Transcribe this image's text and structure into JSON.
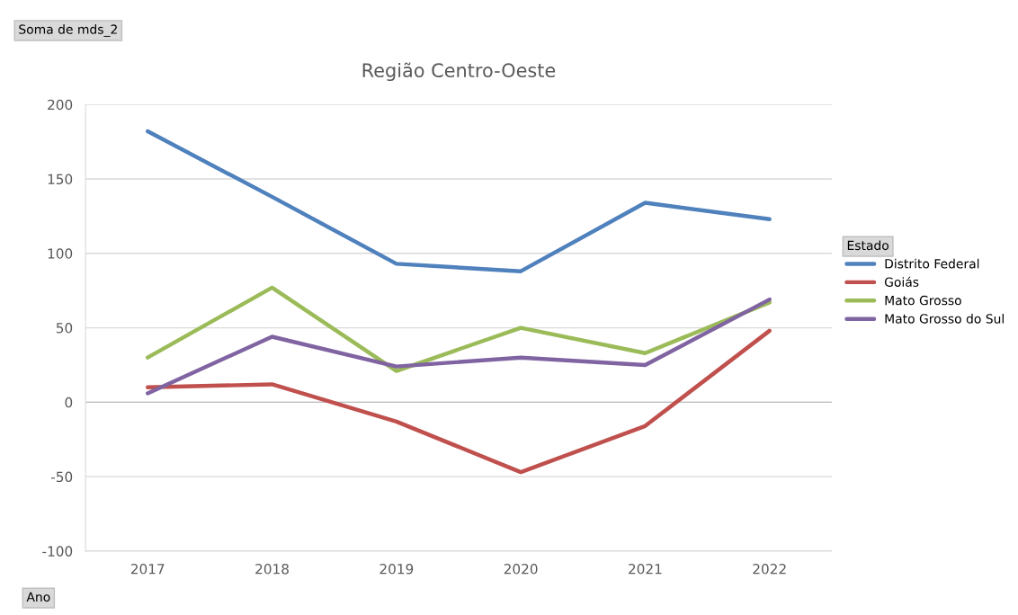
{
  "chart_data": {
    "type": "line",
    "title": "Região Centro-Oeste",
    "categories": [
      "2017",
      "2018",
      "2019",
      "2020",
      "2021",
      "2022"
    ],
    "series": [
      {
        "name": "Distrito Federal",
        "color": "#4f81bd",
        "values": [
          182,
          138,
          93,
          88,
          134,
          123
        ]
      },
      {
        "name": "Goiás",
        "color": "#c0504d",
        "values": [
          10,
          12,
          -13,
          -47,
          -16,
          48
        ]
      },
      {
        "name": "Mato Grosso",
        "color": "#9bbb59",
        "values": [
          30,
          77,
          21,
          50,
          33,
          67
        ]
      },
      {
        "name": "Mato Grosso do Sul",
        "color": "#8064a2",
        "values": [
          6,
          44,
          24,
          30,
          25,
          69
        ]
      }
    ],
    "ylim": [
      -100,
      200
    ],
    "yticks": [
      -100,
      -50,
      0,
      50,
      100,
      150,
      200
    ],
    "grid": "y",
    "legend": "right",
    "legend_title": "Estado",
    "marker": "none",
    "line_style": "solid",
    "annotations": [
      "Soma de mds_2",
      "Ano"
    ]
  }
}
